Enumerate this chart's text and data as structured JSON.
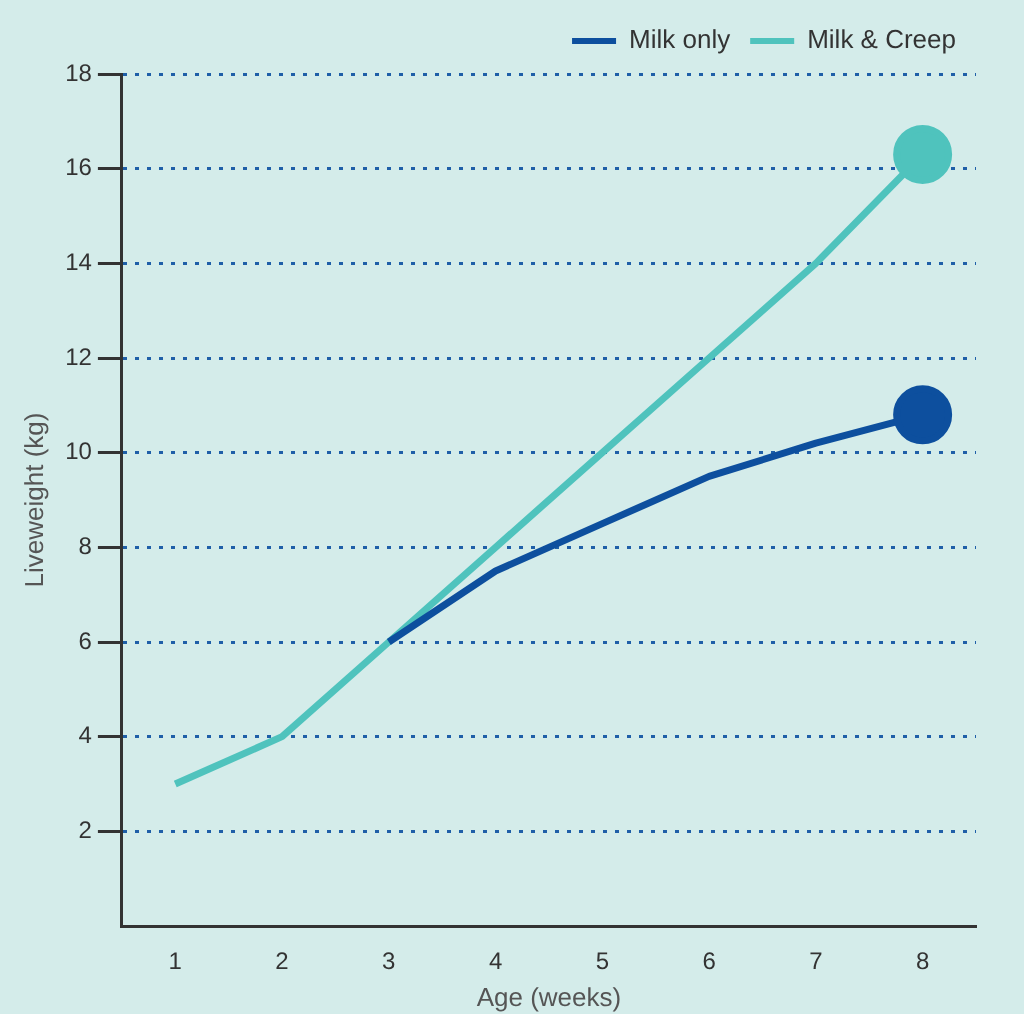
{
  "chart_data": {
    "type": "line",
    "xlabel": "Age (weeks)",
    "ylabel": "Liveweight (kg)",
    "categories": [
      "1",
      "2",
      "3",
      "4",
      "5",
      "6",
      "7",
      "8"
    ],
    "series": [
      {
        "name": "Milk only",
        "color": "#0d4f9e",
        "values": [
          null,
          null,
          6,
          7.5,
          8.5,
          9.5,
          10.2,
          10.8
        ]
      },
      {
        "name": "Milk & Creep",
        "color": "#4fc3bd",
        "values": [
          3,
          4,
          6,
          8,
          10,
          12,
          14,
          16.3
        ]
      }
    ],
    "ylim": [
      0,
      18
    ],
    "yticks": [
      2,
      4,
      6,
      8,
      10,
      12,
      14,
      16,
      18
    ],
    "grid": "y",
    "legend": "top right",
    "line_style": "solid"
  }
}
